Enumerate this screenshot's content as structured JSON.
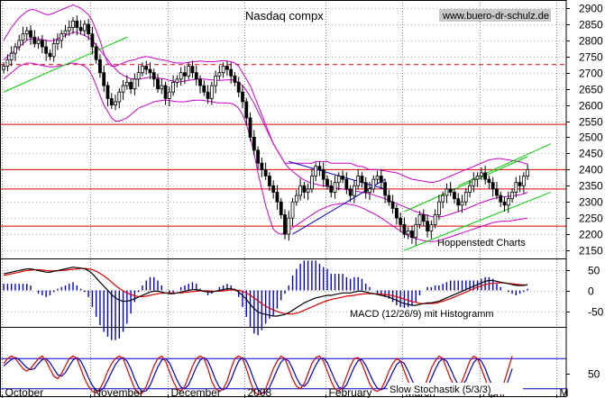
{
  "chart_data": [
    {
      "type": "candlestick",
      "title": "Nasdaq compx",
      "watermark": "www.buero-dr-schulz.de",
      "annotation": "Hoppenstedt Charts",
      "y_ticks": [
        2150,
        2200,
        2250,
        2300,
        2350,
        2400,
        2450,
        2500,
        2550,
        2600,
        2650,
        2700,
        2750,
        2800,
        2850,
        2900
      ],
      "ylim": [
        2125,
        2925
      ],
      "horizontal_lines": [
        2540,
        2400,
        2340,
        2225
      ],
      "dashed_line": 2725,
      "colors": {
        "candle": "#000000",
        "bands": "#cc00cc",
        "trend_up": "#00cc00",
        "trend_down": "#0000cc",
        "support": "#dd0000"
      },
      "months": [
        "October",
        "November",
        "December",
        "2008",
        "February",
        "March",
        "April",
        "M"
      ],
      "month_starts": [
        0,
        23,
        43,
        63,
        84,
        104,
        124,
        144
      ],
      "total_days": 137,
      "close": [
        2720,
        2740,
        2760,
        2780,
        2800,
        2820,
        2830,
        2810,
        2790,
        2800,
        2780,
        2760,
        2750,
        2790,
        2800,
        2820,
        2830,
        2840,
        2860,
        2840,
        2830,
        2850,
        2820,
        2780,
        2740,
        2700,
        2660,
        2620,
        2600,
        2610,
        2640,
        2660,
        2670,
        2650,
        2680,
        2700,
        2720,
        2710,
        2700,
        2680,
        2650,
        2660,
        2620,
        2640,
        2670,
        2680,
        2700,
        2690,
        2720,
        2700,
        2680,
        2660,
        2640,
        2620,
        2660,
        2690,
        2700,
        2720,
        2710,
        2690,
        2670,
        2640,
        2610,
        2560,
        2500,
        2460,
        2420,
        2400,
        2380,
        2350,
        2330,
        2300,
        2260,
        2200,
        2250,
        2300,
        2320,
        2350,
        2330,
        2340,
        2380,
        2410,
        2400,
        2370,
        2350,
        2330,
        2360,
        2380,
        2370,
        2340,
        2320,
        2350,
        2380,
        2360,
        2330,
        2340,
        2370,
        2380,
        2360,
        2320,
        2300,
        2280,
        2250,
        2230,
        2200,
        2210,
        2190,
        2230,
        2260,
        2240,
        2210,
        2230,
        2260,
        2300,
        2320,
        2340,
        2330,
        2310,
        2290,
        2300,
        2330,
        2350,
        2370,
        2380,
        2390,
        2370,
        2360,
        2340,
        2320,
        2300,
        2290,
        2310,
        2330,
        2360,
        2350,
        2380,
        2400
      ],
      "upper_band": [
        2800,
        2820,
        2840,
        2855,
        2870,
        2880,
        2890,
        2895,
        2895,
        2890,
        2885,
        2880,
        2880,
        2885,
        2890,
        2895,
        2900,
        2905,
        2910,
        2905,
        2900,
        2890,
        2880,
        2860,
        2830,
        2800,
        2760,
        2730,
        2720,
        2720,
        2725,
        2730,
        2735,
        2738,
        2740,
        2745,
        2748,
        2750,
        2748,
        2745,
        2742,
        2740,
        2738,
        2735,
        2732,
        2730,
        2730,
        2730,
        2732,
        2734,
        2735,
        2736,
        2735,
        2734,
        2734,
        2735,
        2736,
        2737,
        2736,
        2734,
        2730,
        2720,
        2700,
        2680,
        2660,
        2630,
        2600,
        2570,
        2540,
        2510,
        2480,
        2460,
        2440,
        2420,
        2420,
        2420,
        2420,
        2420,
        2420,
        2420,
        2420,
        2425,
        2425,
        2425,
        2425,
        2420,
        2420,
        2420,
        2420,
        2420,
        2420,
        2415,
        2410,
        2410,
        2405,
        2400,
        2400,
        2400,
        2398,
        2396,
        2394,
        2392,
        2390,
        2385,
        2380,
        2375,
        2370,
        2368,
        2366,
        2364,
        2362,
        2360,
        2362,
        2365,
        2370,
        2375,
        2380,
        2385,
        2390,
        2395,
        2400,
        2405,
        2410,
        2415,
        2420,
        2425,
        2430,
        2432,
        2434,
        2434,
        2432,
        2430,
        2428,
        2426,
        2424,
        2420,
        2418
      ],
      "middle_band": [
        2740,
        2750,
        2760,
        2770,
        2780,
        2790,
        2800,
        2805,
        2805,
        2805,
        2802,
        2800,
        2798,
        2800,
        2805,
        2810,
        2815,
        2820,
        2825,
        2825,
        2820,
        2815,
        2808,
        2800,
        2785,
        2770,
        2755,
        2740,
        2725,
        2712,
        2700,
        2692,
        2686,
        2682,
        2680,
        2680,
        2682,
        2684,
        2686,
        2686,
        2684,
        2682,
        2680,
        2676,
        2674,
        2672,
        2672,
        2674,
        2676,
        2678,
        2680,
        2681,
        2680,
        2679,
        2678,
        2676,
        2676,
        2677,
        2678,
        2678,
        2676,
        2670,
        2660,
        2645,
        2625,
        2605,
        2580,
        2555,
        2530,
        2505,
        2480,
        2460,
        2440,
        2420,
        2405,
        2395,
        2385,
        2375,
        2368,
        2362,
        2358,
        2355,
        2352,
        2350,
        2348,
        2345,
        2343,
        2342,
        2340,
        2338,
        2336,
        2334,
        2332,
        2330,
        2328,
        2325,
        2322,
        2318,
        2314,
        2310,
        2305,
        2300,
        2295,
        2290,
        2285,
        2280,
        2275,
        2270,
        2266,
        2262,
        2258,
        2255,
        2254,
        2254,
        2255,
        2258,
        2262,
        2266,
        2270,
        2274,
        2278,
        2283,
        2288,
        2293,
        2298,
        2302,
        2306,
        2310,
        2313,
        2315,
        2316,
        2317,
        2318,
        2320,
        2322,
        2325,
        2330
      ],
      "lower_band": [
        2680,
        2690,
        2700,
        2710,
        2720,
        2725,
        2730,
        2730,
        2728,
        2725,
        2722,
        2720,
        2718,
        2718,
        2720,
        2722,
        2725,
        2728,
        2730,
        2728,
        2725,
        2720,
        2710,
        2690,
        2660,
        2630,
        2600,
        2580,
        2560,
        2550,
        2550,
        2555,
        2560,
        2570,
        2580,
        2590,
        2595,
        2600,
        2605,
        2610,
        2612,
        2614,
        2615,
        2614,
        2612,
        2610,
        2610,
        2610,
        2612,
        2614,
        2615,
        2615,
        2614,
        2612,
        2610,
        2608,
        2606,
        2606,
        2606,
        2605,
        2600,
        2590,
        2570,
        2540,
        2500,
        2450,
        2390,
        2340,
        2290,
        2250,
        2215,
        2205,
        2200,
        2205,
        2212,
        2220,
        2228,
        2236,
        2244,
        2252,
        2260,
        2268,
        2275,
        2280,
        2285,
        2290,
        2292,
        2294,
        2295,
        2294,
        2292,
        2290,
        2286,
        2282,
        2276,
        2270,
        2264,
        2258,
        2250,
        2242,
        2234,
        2226,
        2218,
        2210,
        2202,
        2196,
        2190,
        2186,
        2183,
        2180,
        2178,
        2177,
        2178,
        2180,
        2184,
        2188,
        2192,
        2196,
        2200,
        2204,
        2208,
        2212,
        2216,
        2220,
        2224,
        2228,
        2232,
        2236,
        2238,
        2240,
        2240,
        2240,
        2242,
        2244,
        2246,
        2248,
        2250
      ],
      "trend_lines": [
        {
          "color": "trend_up",
          "x": [
            0,
            32
          ],
          "y": [
            2640,
            2810
          ]
        },
        {
          "color": "trend_down",
          "x": [
            74,
            99
          ],
          "y": [
            2425,
            2340
          ]
        },
        {
          "color": "trend_down",
          "x": [
            75,
            99
          ],
          "y": [
            2200,
            2370
          ]
        },
        {
          "color": "trend_up",
          "x": [
            104,
            136
          ],
          "y": [
            2270,
            2440
          ]
        },
        {
          "color": "trend_up",
          "x": [
            104,
            142
          ],
          "y": [
            2150,
            2330
          ]
        },
        {
          "color": "trend_up",
          "x": [
            118,
            142
          ],
          "y": [
            2350,
            2480
          ]
        }
      ]
    },
    {
      "type": "macd",
      "label": "MACD (12/26/9) mit Histogramm",
      "y_ticks": [
        -50,
        0,
        50
      ],
      "ylim": [
        -75,
        75
      ],
      "macd": [
        40,
        42,
        44,
        46,
        48,
        50,
        52,
        52,
        50,
        48,
        46,
        44,
        44,
        46,
        48,
        50,
        52,
        54,
        56,
        55,
        54,
        52,
        48,
        40,
        30,
        20,
        10,
        0,
        -10,
        -18,
        -24,
        -26,
        -26,
        -24,
        -20,
        -16,
        -12,
        -8,
        -4,
        -2,
        -2,
        -4,
        -6,
        -8,
        -8,
        -6,
        -4,
        -2,
        0,
        2,
        2,
        0,
        -2,
        -4,
        -4,
        -2,
        0,
        2,
        4,
        4,
        2,
        -4,
        -12,
        -22,
        -34,
        -44,
        -52,
        -56,
        -58,
        -60,
        -62,
        -62,
        -60,
        -58,
        -54,
        -48,
        -42,
        -36,
        -30,
        -26,
        -22,
        -18,
        -16,
        -14,
        -12,
        -12,
        -10,
        -8,
        -6,
        -6,
        -6,
        -4,
        -2,
        -2,
        -4,
        -6,
        -8,
        -10,
        -12,
        -14,
        -16,
        -20,
        -24,
        -28,
        -32,
        -34,
        -36,
        -36,
        -34,
        -32,
        -30,
        -30,
        -28,
        -26,
        -22,
        -18,
        -14,
        -10,
        -6,
        -2,
        2,
        6,
        10,
        14,
        18,
        22,
        24,
        24,
        22,
        20,
        18,
        16,
        14,
        12,
        12,
        12,
        14
      ],
      "signal": [
        36,
        38,
        40,
        42,
        44,
        46,
        48,
        49,
        50,
        50,
        49,
        48,
        47,
        47,
        47,
        48,
        49,
        50,
        51,
        52,
        53,
        53,
        52,
        50,
        46,
        41,
        35,
        28,
        20,
        12,
        5,
        -1,
        -6,
        -10,
        -13,
        -15,
        -15,
        -14,
        -12,
        -10,
        -8,
        -7,
        -6,
        -6,
        -6,
        -6,
        -6,
        -5,
        -4,
        -3,
        -2,
        -1,
        -1,
        -1,
        -2,
        -2,
        -2,
        -1,
        0,
        1,
        1,
        0,
        -2,
        -6,
        -12,
        -18,
        -25,
        -32,
        -38,
        -43,
        -47,
        -51,
        -54,
        -56,
        -57,
        -57,
        -55,
        -52,
        -48,
        -44,
        -40,
        -36,
        -32,
        -28,
        -25,
        -22,
        -20,
        -18,
        -16,
        -14,
        -13,
        -12,
        -10,
        -9,
        -8,
        -8,
        -8,
        -8,
        -9,
        -10,
        -11,
        -13,
        -15,
        -18,
        -21,
        -24,
        -27,
        -29,
        -31,
        -32,
        -32,
        -32,
        -31,
        -29,
        -26,
        -23,
        -20,
        -16,
        -12,
        -8,
        -4,
        0,
        4,
        8,
        11,
        14,
        16,
        17,
        18,
        18,
        18,
        17,
        16,
        15,
        14,
        13,
        13
      ]
    },
    {
      "type": "stochastic",
      "label": "Slow Stochastik (5/3/3)",
      "y_ticks": [
        50
      ],
      "ylim": [
        0,
        100
      ],
      "reference_lines": [
        80,
        20
      ],
      "k": [
        70,
        80,
        85,
        80,
        70,
        60,
        55,
        60,
        70,
        80,
        85,
        75,
        60,
        45,
        40,
        50,
        65,
        80,
        85,
        80,
        60,
        40,
        25,
        15,
        12,
        20,
        35,
        55,
        70,
        80,
        85,
        80,
        60,
        40,
        20,
        10,
        12,
        25,
        45,
        65,
        80,
        85,
        75,
        55,
        35,
        20,
        15,
        25,
        45,
        65,
        80,
        85,
        80,
        60,
        35,
        20,
        15,
        20,
        35,
        60,
        80,
        85,
        80,
        60,
        35,
        15,
        8,
        10,
        20,
        40,
        60,
        75,
        85,
        80,
        60,
        40,
        25,
        20,
        30,
        50,
        70,
        82,
        85,
        75,
        55,
        35,
        20,
        15,
        25,
        45,
        65,
        80,
        82,
        70,
        50,
        30,
        18,
        15,
        20,
        35,
        55,
        70,
        80,
        75,
        55,
        35,
        20,
        12,
        10,
        20,
        40,
        60,
        75,
        85,
        80,
        60,
        40,
        25,
        20,
        35,
        55,
        75,
        85,
        80,
        60,
        40,
        20,
        10,
        8,
        15,
        35,
        60,
        85
      ],
      "d": [
        65,
        72,
        78,
        82,
        78,
        70,
        62,
        58,
        60,
        70,
        78,
        80,
        72,
        60,
        48,
        45,
        52,
        65,
        77,
        82,
        75,
        60,
        42,
        27,
        17,
        15,
        22,
        37,
        53,
        68,
        78,
        82,
        75,
        60,
        40,
        23,
        14,
        16,
        27,
        45,
        63,
        77,
        80,
        72,
        55,
        37,
        23,
        20,
        28,
        45,
        63,
        77,
        82,
        75,
        58,
        38,
        23,
        18,
        23,
        38,
        58,
        75,
        82,
        75,
        58,
        37,
        19,
        11,
        13,
        23,
        40,
        58,
        73,
        80,
        75,
        60,
        42,
        28,
        25,
        33,
        50,
        67,
        79,
        81,
        72,
        55,
        37,
        23,
        20,
        28,
        45,
        63,
        76,
        78,
        67,
        50,
        33,
        21,
        18,
        23,
        37,
        53,
        68,
        75,
        70,
        55,
        37,
        22,
        14,
        14,
        23,
        40,
        58,
        73,
        80,
        75,
        60,
        42,
        28,
        27,
        37,
        55,
        72,
        80,
        75,
        60,
        40,
        23,
        13,
        11,
        19,
        37,
        60
      ]
    }
  ]
}
